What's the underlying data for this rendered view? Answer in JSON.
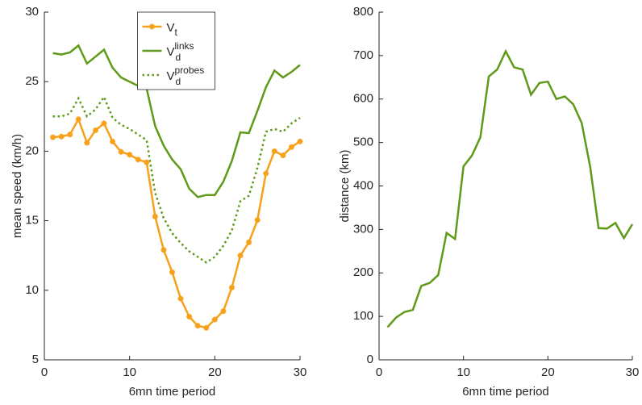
{
  "chart_data": [
    {
      "type": "line",
      "xlabel": "6mn time period",
      "ylabel": "mean speed (km/h)",
      "x": [
        1,
        2,
        3,
        4,
        5,
        6,
        7,
        8,
        9,
        10,
        11,
        12,
        13,
        14,
        15,
        16,
        17,
        18,
        19,
        20,
        21,
        22,
        23,
        24,
        25,
        26,
        27,
        28,
        29,
        30
      ],
      "xlim": [
        0,
        30
      ],
      "xticks": [
        0,
        10,
        20,
        30
      ],
      "ylim": [
        5,
        30
      ],
      "yticks": [
        5,
        10,
        15,
        20,
        25,
        30
      ],
      "legend": "north",
      "series": [
        {
          "name": "V_t",
          "color": "#f7a11a",
          "style": "solid",
          "marker": "star",
          "values": [
            21.0,
            21.05,
            21.2,
            22.3,
            20.6,
            21.5,
            22.0,
            20.7,
            19.95,
            19.75,
            19.4,
            19.2,
            15.3,
            12.9,
            11.3,
            9.4,
            8.1,
            7.45,
            7.3,
            7.9,
            8.5,
            10.2,
            12.5,
            13.45,
            15.05,
            18.4,
            20.0,
            19.7,
            20.3,
            20.7
          ]
        },
        {
          "name": "V_d^links",
          "color": "#5f9a1a",
          "style": "solid",
          "marker": "none",
          "values": [
            27.05,
            26.95,
            27.1,
            27.6,
            26.3,
            26.8,
            27.3,
            26.0,
            25.3,
            25.0,
            24.7,
            24.5,
            21.8,
            20.4,
            19.4,
            18.7,
            17.3,
            16.7,
            16.85,
            16.85,
            17.8,
            19.3,
            21.35,
            21.3,
            22.9,
            24.6,
            25.8,
            25.3,
            25.7,
            26.2
          ]
        },
        {
          "name": "V_d^probes",
          "color": "#5f9a1a",
          "style": "dotted",
          "marker": "none",
          "values": [
            22.5,
            22.5,
            22.7,
            23.8,
            22.5,
            23.0,
            23.9,
            22.4,
            21.9,
            21.6,
            21.2,
            20.8,
            17.0,
            15.2,
            14.1,
            13.4,
            12.8,
            12.4,
            12.0,
            12.4,
            13.2,
            14.3,
            16.4,
            16.8,
            18.8,
            21.4,
            21.6,
            21.4,
            22.0,
            22.4
          ]
        }
      ]
    },
    {
      "type": "line",
      "xlabel": "6mn time period",
      "ylabel": "distance (km)",
      "x": [
        1,
        2,
        3,
        4,
        5,
        6,
        7,
        8,
        9,
        10,
        11,
        12,
        13,
        14,
        15,
        16,
        17,
        18,
        19,
        20,
        21,
        22,
        23,
        24,
        25,
        26,
        27,
        28,
        29,
        30
      ],
      "xlim": [
        0,
        30
      ],
      "xticks": [
        0,
        10,
        20,
        30
      ],
      "ylim": [
        0,
        800
      ],
      "yticks": [
        0,
        100,
        200,
        300,
        400,
        500,
        600,
        700,
        800
      ],
      "series": [
        {
          "color": "#5f9a1a",
          "style": "solid",
          "marker": "none",
          "values": [
            75,
            97,
            110,
            115,
            170,
            177,
            195,
            292,
            278,
            445,
            470,
            512,
            652,
            668,
            710,
            673,
            668,
            610,
            637,
            640,
            600,
            606,
            588,
            545,
            445,
            303,
            302,
            315,
            280,
            312
          ]
        }
      ]
    }
  ]
}
